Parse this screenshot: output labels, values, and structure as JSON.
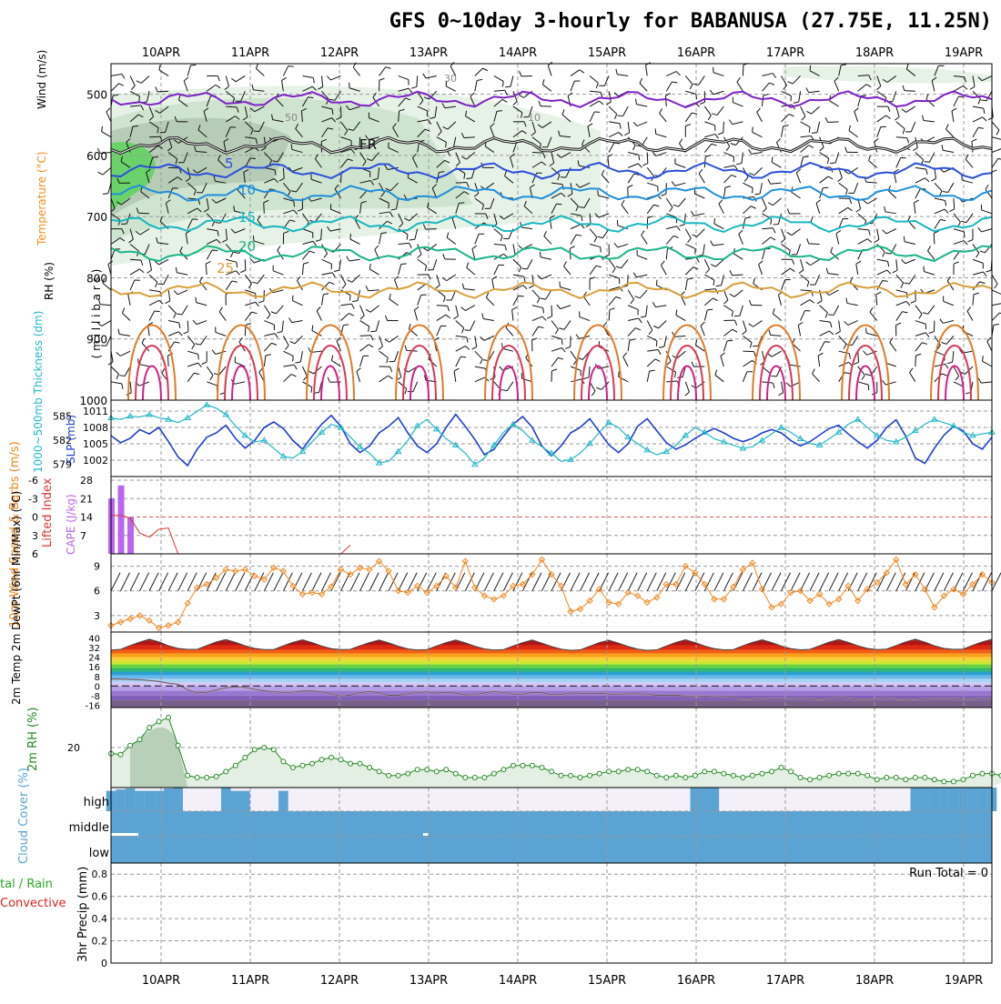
{
  "title": "GFS 0~10day 3-hourly for BABANUSA (27.75E, 11.25N)",
  "dates": [
    "10APR",
    "11APR",
    "12APR",
    "13APR",
    "14APR",
    "15APR",
    "16APR",
    "17APR",
    "18APR",
    "19APR"
  ],
  "colors": {
    "frame": "#000000",
    "grid": "#9a9a9a",
    "rh_panel": "#22aa22",
    "wind_label": "#000000",
    "temperature_label": "#ff8c1a",
    "temp_c_label": "#dd2222",
    "slp": "#1f3fcf",
    "thickness": "#22b7c7",
    "cape": "#bb66ee",
    "lifted_index": "#dd3333",
    "wind10m": "#ee8822",
    "rh2m": "#228822",
    "cloud": "#5aa3d3",
    "precip_total": "#22aa22",
    "precip_conv": "#dd2222"
  },
  "chart_data": [
    {
      "id": "upper-air",
      "type": "contour",
      "ylabel_parts": [
        "RH (%)",
        "Temperature (°C)",
        "Wind (m/s)"
      ],
      "ylabel_units": "( m i l l i b a r s )",
      "y_ticks": [
        500,
        600,
        700,
        800,
        900,
        1000
      ],
      "ylim": [
        1000,
        450
      ],
      "y_scale": "pressure",
      "temperature_labels": [
        "5",
        "10",
        "15",
        "20",
        "25",
        "FR"
      ],
      "rh_labels": [
        "30",
        "50",
        "10"
      ],
      "isotherms": [
        {
          "name": "-5",
          "color": "#7d22c7",
          "p": 508
        },
        {
          "name": "FR",
          "color": "#111111",
          "p": 583
        },
        {
          "name": "5",
          "color": "#2a4fdb",
          "p": 625
        },
        {
          "name": "10",
          "color": "#1f8fdb",
          "p": 662
        },
        {
          "name": "15",
          "color": "#18b7c0",
          "p": 712
        },
        {
          "name": "20",
          "color": "#1ab58a",
          "p": 760
        },
        {
          "name": "25",
          "color": "#d7a13a",
          "p": 820
        }
      ]
    },
    {
      "id": "slp-thickness",
      "type": "line",
      "left_axis": {
        "label": "1000~500mb Thickness (dm)",
        "ticks": [
          579,
          582,
          585
        ]
      },
      "right_axis": {
        "label": "SLP (mb)",
        "ticks": [
          1002,
          1005,
          1008,
          1011
        ]
      },
      "series": [
        {
          "name": "SLP (mb)",
          "color": "#1f3fcf",
          "values": [
            1006.5,
            1005.2,
            1006.0,
            1007.6,
            1006.8,
            1008.0,
            1005.4,
            1002.6,
            1001.0,
            1004.0,
            1006.2,
            1007.0,
            1008.4,
            1006.0,
            1004.2,
            1005.6,
            1008.0,
            1009.0,
            1007.8,
            1005.6,
            1004.0,
            1006.4,
            1008.6,
            1010.2,
            1008.2,
            1005.0,
            1003.4,
            1004.6,
            1007.0,
            1008.2,
            1009.8,
            1007.0,
            1004.6,
            1003.4,
            1005.0,
            1008.0,
            1010.4,
            1008.2,
            1005.8,
            1003.0,
            1004.0,
            1006.4,
            1008.6,
            1010.0,
            1008.0,
            1004.6,
            1002.8,
            1004.6,
            1007.0,
            1008.0,
            1009.6,
            1007.2,
            1004.8,
            1003.4,
            1005.0,
            1008.2,
            1009.6,
            1007.4,
            1005.2,
            1004.0,
            1004.8,
            1006.0,
            1007.0,
            1007.8,
            1007.0,
            1006.0,
            1005.4,
            1006.0,
            1007.0,
            1007.6,
            1007.0,
            1005.6,
            1004.6,
            1005.4,
            1006.6,
            1007.8,
            1008.4,
            1006.8,
            1005.4,
            1004.2,
            1005.6,
            1008.0,
            1009.4,
            1006.4,
            1002.4,
            1001.4,
            1004.2,
            1006.6,
            1008.2,
            1007.4,
            1005.0,
            1004.0,
            1006.2
          ]
        },
        {
          "name": "1000~500mb Thickness (dm)",
          "color": "#22b7c7",
          "values": [
            584.8,
            584.6,
            585.0,
            584.9,
            585.2,
            584.8,
            584.6,
            584.2,
            584.8,
            585.6,
            586.4,
            586.0,
            585.2,
            583.8,
            582.6,
            581.8,
            582.0,
            581.0,
            580.0,
            579.8,
            580.6,
            581.8,
            583.0,
            584.0,
            583.6,
            582.4,
            581.2,
            580.4,
            579.2,
            579.4,
            580.6,
            582.0,
            583.8,
            584.6,
            583.4,
            582.2,
            581.4,
            580.4,
            579.0,
            579.8,
            581.4,
            583.0,
            584.0,
            583.2,
            582.0,
            581.2,
            580.4,
            579.4,
            579.6,
            580.4,
            581.6,
            583.0,
            584.2,
            583.6,
            582.4,
            581.6,
            580.8,
            580.2,
            580.6,
            581.4,
            582.6,
            583.6,
            583.0,
            582.2,
            581.8,
            581.4,
            581.0,
            581.2,
            582.0,
            582.8,
            583.6,
            583.0,
            582.2,
            581.6,
            581.4,
            582.2,
            583.0,
            584.0,
            584.6,
            583.6,
            582.6,
            582.0,
            581.8,
            582.4,
            583.2,
            584.0,
            584.6,
            584.2,
            583.8,
            583.0,
            582.6,
            582.8,
            583.0
          ]
        }
      ]
    },
    {
      "id": "cape-li",
      "type": "bar",
      "left_axis": {
        "label": "Lifted Index",
        "ticks": [
          "-6",
          "-3",
          "0",
          "3",
          "6"
        ]
      },
      "right_axis": {
        "label": "CAPE (J/kg)",
        "ticks": [
          7,
          14,
          21,
          28
        ]
      },
      "cape_bars": [
        {
          "t": 0,
          "value": 21
        },
        {
          "t": 1,
          "value": 26
        },
        {
          "t": 2,
          "value": 14
        }
      ],
      "lifted_index": [
        -0.2,
        -0.3,
        0.2,
        2.6,
        3.3,
        2.0,
        1.8,
        6.0
      ]
    },
    {
      "id": "wind10m",
      "type": "line",
      "ylabel": "10m Wind Speed & Barbs (m/s)",
      "y_ticks": [
        3,
        6,
        9
      ],
      "ylim": [
        1,
        10.5
      ],
      "series": [
        {
          "name": "10m Wind Speed",
          "color": "#ee8822",
          "values": [
            1.8,
            2.2,
            2.6,
            3.0,
            2.4,
            1.5,
            1.8,
            2.2,
            4.5,
            6.4,
            6.8,
            7.6,
            8.6,
            8.4,
            8.6,
            7.8,
            7.4,
            8.8,
            8.4,
            6.6,
            5.6,
            5.8,
            5.6,
            6.5,
            8.6,
            8.0,
            8.8,
            8.6,
            9.6,
            8.4,
            6.0,
            5.8,
            6.6,
            5.8,
            6.6,
            7.8,
            6.4,
            9.6,
            6.4,
            5.4,
            5.0,
            5.4,
            6.6,
            6.8,
            8.0,
            9.8,
            8.0,
            6.6,
            3.5,
            3.8,
            4.8,
            6.2,
            4.6,
            4.4,
            5.8,
            5.4,
            4.6,
            5.2,
            6.8,
            6.8,
            9.0,
            8.2,
            6.8,
            5.0,
            5.0,
            6.5,
            8.6,
            9.4,
            6.2,
            4.0,
            4.4,
            5.8,
            6.0,
            4.8,
            5.6,
            4.4,
            5.0,
            6.6,
            4.8,
            6.2,
            7.0,
            8.2,
            9.8,
            6.8,
            8.0,
            6.2,
            4.0,
            5.4,
            6.2,
            5.6,
            6.8,
            8.0,
            7.0
          ]
        }
      ]
    },
    {
      "id": "temp2m",
      "type": "area",
      "ylabel": "2m Temp 2m DewPt (6hr Min/Max) (°C)",
      "y_ticks": [
        "40",
        "32",
        "24",
        "16",
        "8",
        "0",
        "-8",
        "-16"
      ],
      "temperature": [
        30.0,
        30.6,
        33.8,
        36.6,
        39.0,
        36.8,
        33.6,
        31.4,
        30.6,
        30.6,
        33.8,
        36.8,
        38.8,
        36.4,
        33.6,
        31.4,
        30.4,
        30.4,
        33.6,
        36.4,
        38.6,
        36.2,
        33.4,
        31.2,
        30.4,
        30.6,
        33.6,
        36.2,
        38.4,
        36.0,
        33.2,
        31.0,
        30.0,
        30.4,
        33.4,
        36.2,
        38.4,
        36.0,
        33.2,
        31.0,
        30.0,
        30.4,
        33.4,
        36.2,
        38.4,
        35.8,
        33.0,
        30.8,
        29.8,
        30.2,
        33.2,
        36.2,
        38.2,
        35.8,
        33.0,
        30.8,
        29.8,
        30.2,
        33.4,
        36.4,
        38.6,
        36.2,
        33.4,
        31.2,
        30.2,
        30.4,
        33.6,
        36.4,
        38.6,
        36.2,
        33.4,
        31.2,
        30.2,
        30.6,
        33.6,
        36.6,
        38.8,
        36.4,
        33.6,
        31.4,
        30.4,
        30.8,
        33.8,
        36.8,
        39.0,
        36.6,
        33.6,
        31.4,
        30.6,
        30.8,
        34.0,
        36.8,
        39.0
      ],
      "dewpoint": [
        5.8,
        5.8,
        5.5,
        5.2,
        4.6,
        3.8,
        2.4,
        1.4,
        -3.4,
        -5.8,
        -5.2,
        -3.2,
        -1.6,
        -0.6,
        -1.2,
        -2.8,
        -4.0,
        -4.8,
        -5.4,
        -5.2,
        -4.2,
        -4.2,
        -4.8,
        -6.4,
        -8.4,
        -7.6,
        -5.6,
        -4.6,
        -5.6,
        -7.8,
        -7.8,
        -6.4,
        -5.4,
        -5.0,
        -6.0,
        -5.2,
        -6.0,
        -7.4,
        -7.2,
        -5.8,
        -4.6,
        -5.4,
        -6.8,
        -6.8,
        -5.4,
        -5.6,
        -7.2,
        -7.2,
        -5.8,
        -6.0,
        -6.4,
        -6.0,
        -6.8,
        -6.8,
        -6.6,
        -6.4,
        -6.8,
        -7.8,
        -7.8,
        -7.6,
        -8.4,
        -9.0,
        -8.2,
        -8.8,
        -8.6,
        -9.4,
        -11.0,
        -10.8,
        -10.4,
        -10.6,
        -10.6,
        -10.4,
        -10.0,
        -10.6,
        -11.0,
        -10.4,
        -9.6,
        -10.2,
        -11.2,
        -11.2,
        -10.4,
        -10.0,
        -10.8,
        -11.2,
        -11.0,
        -10.6,
        -10.4,
        -10.2,
        -10.6,
        -10.8,
        -10.8,
        -10.6,
        -10.4
      ]
    },
    {
      "id": "rh2m",
      "type": "area",
      "ylabel": "2m RH (%)",
      "y_ticks": [
        20
      ],
      "ylim": [
        0,
        40
      ],
      "series": [
        {
          "name": "2m RH",
          "color": "#228822",
          "values": [
            17,
            16.5,
            21,
            24,
            30,
            33,
            35,
            21,
            6,
            5,
            5,
            5.5,
            8,
            11,
            15,
            19,
            20,
            19,
            13,
            10,
            11,
            12,
            14,
            15,
            14,
            12,
            12,
            10,
            8,
            6,
            6,
            7,
            9,
            9,
            8,
            9,
            7,
            5,
            5,
            5,
            7,
            9,
            11,
            11,
            11,
            10,
            8,
            6,
            6,
            5,
            6,
            7,
            8,
            8,
            9,
            9,
            8,
            6,
            5,
            6,
            5,
            6,
            8,
            8,
            7,
            6,
            5,
            6,
            7,
            8,
            10,
            8,
            5,
            4,
            5,
            6,
            7,
            7,
            7,
            6,
            4,
            5,
            5,
            4,
            5,
            5,
            4,
            3,
            3,
            4,
            6,
            7,
            7,
            6,
            5
          ]
        }
      ]
    },
    {
      "id": "cloud",
      "type": "bar",
      "ylabel": "Cloud Cover (%)",
      "levels": [
        "high",
        "middle",
        "low"
      ],
      "high_cover": [
        86,
        92,
        96,
        86,
        86,
        86,
        96,
        100,
        74,
        74,
        86,
        100,
        100,
        86,
        86,
        86,
        74,
        72,
        86,
        100,
        74,
        74,
        100,
        100,
        100,
        100,
        100,
        96,
        96,
        96,
        96,
        96,
        96,
        96,
        90,
        90,
        90,
        90,
        90,
        90,
        90,
        90,
        100,
        100,
        100,
        100,
        100,
        100,
        100,
        100,
        100,
        100,
        100,
        100,
        100,
        100,
        100,
        100,
        100,
        100,
        100,
        100,
        100,
        100,
        100,
        100,
        100,
        100,
        100,
        100,
        100,
        100,
        100,
        100,
        100,
        100,
        100,
        100,
        100,
        100,
        100,
        100,
        100,
        100,
        100,
        100,
        100,
        100,
        100,
        100,
        100,
        100,
        100
      ],
      "high_cover_gaps": [
        8,
        9,
        10,
        11,
        15,
        16,
        17,
        19,
        20,
        21,
        22,
        23,
        24,
        25,
        26,
        27,
        28,
        29,
        30,
        31,
        32,
        33,
        34,
        35,
        36,
        37,
        38,
        39,
        40,
        41,
        42,
        43,
        44,
        45,
        46,
        47,
        48,
        49,
        50,
        51,
        52,
        53,
        54,
        55,
        56,
        57,
        58,
        59,
        60,
        64,
        65,
        66,
        67,
        68,
        69,
        70,
        71,
        72,
        73,
        74,
        75,
        76,
        77,
        78,
        79,
        80,
        81,
        82,
        83
      ],
      "middle_cover": [
        100,
        100,
        100,
        100,
        100,
        100,
        100,
        100,
        100,
        100,
        100,
        100,
        100,
        100,
        100,
        100,
        100,
        100,
        100,
        100,
        100,
        100,
        100,
        100,
        100,
        100,
        100,
        100,
        100,
        100,
        100,
        100,
        100,
        100,
        100,
        100,
        100,
        100,
        100,
        100,
        100,
        100,
        100,
        100,
        100,
        100,
        100,
        100,
        100,
        100,
        100,
        100,
        100,
        100,
        100,
        100,
        100,
        100,
        100,
        100,
        100,
        100,
        100,
        100,
        100,
        100,
        100,
        100,
        100,
        100,
        100,
        100,
        100,
        100,
        100,
        100,
        100,
        100,
        100,
        100,
        100,
        100,
        100,
        100,
        100,
        100,
        100,
        100,
        100,
        100,
        100,
        100,
        100
      ],
      "low_cover": [
        100,
        100,
        100,
        100,
        100,
        100,
        100,
        100,
        100,
        100,
        100,
        100,
        100,
        100,
        100,
        100,
        100,
        100,
        100,
        100,
        100,
        100,
        100,
        100,
        100,
        100,
        100,
        100,
        100,
        100,
        100,
        100,
        100,
        100,
        100,
        100,
        100,
        100,
        100,
        100,
        100,
        100,
        100,
        100,
        100,
        100,
        100,
        100,
        100,
        100,
        100,
        100,
        100,
        100,
        100,
        100,
        100,
        100,
        100,
        100,
        100,
        100,
        100,
        100,
        100,
        100,
        100,
        100,
        100,
        100,
        100,
        100,
        100,
        100,
        100,
        100,
        100,
        100,
        100,
        100,
        100,
        100,
        100,
        100,
        100,
        100,
        100,
        100,
        100,
        100,
        100,
        100,
        100
      ]
    },
    {
      "id": "precip",
      "type": "bar",
      "ylabel": "3hr Precip (mm)",
      "left_label_lines": [
        "tal / Rain",
        "Convective"
      ],
      "y_ticks": [
        "0",
        "0.2",
        "0.4",
        "0.6",
        "0.8"
      ],
      "ylim": [
        0,
        0.9
      ],
      "run_total_label": "Run Total = 0",
      "values": [
        0,
        0,
        0,
        0,
        0,
        0,
        0,
        0,
        0,
        0,
        0,
        0,
        0,
        0,
        0,
        0,
        0,
        0,
        0,
        0,
        0,
        0,
        0,
        0,
        0,
        0,
        0,
        0,
        0,
        0,
        0,
        0,
        0,
        0,
        0,
        0,
        0,
        0,
        0,
        0,
        0,
        0,
        0,
        0,
        0,
        0,
        0,
        0,
        0,
        0,
        0,
        0,
        0,
        0,
        0,
        0,
        0,
        0,
        0,
        0,
        0,
        0,
        0,
        0,
        0,
        0,
        0,
        0,
        0,
        0,
        0,
        0,
        0,
        0,
        0,
        0,
        0,
        0,
        0,
        0,
        0,
        0,
        0,
        0,
        0,
        0,
        0,
        0,
        0,
        0,
        0,
        0,
        0
      ]
    }
  ]
}
